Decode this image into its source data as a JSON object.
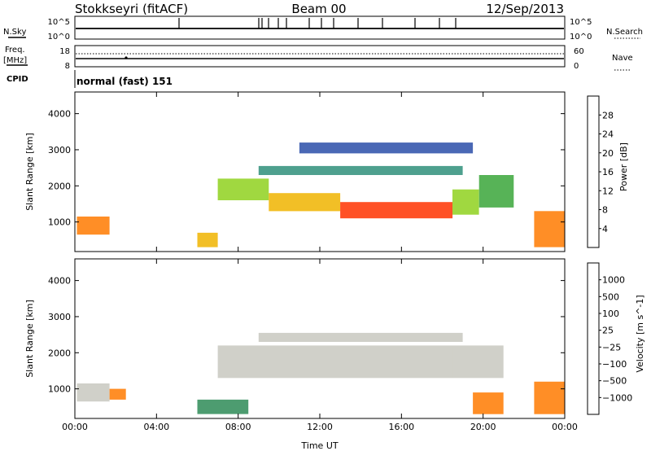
{
  "header": {
    "station": "Stokkseyri (fitACF)",
    "beam": "Beam 00",
    "date": "12/Sep/2013"
  },
  "summary": {
    "left_labels": {
      "nsky": "N.Sky",
      "freq": "Freq.",
      "freq_unit": "[MHz]",
      "cpid": "CPID"
    },
    "right_labels": {
      "nsearch": "N.Search",
      "nave": "Nave"
    },
    "noise_ticks_left": [
      "10^5",
      "10^0"
    ],
    "noise_ticks_right": [
      "10^5",
      "10^0"
    ],
    "freq_ticks_left": [
      "18",
      "8"
    ],
    "nave_ticks_right": [
      "60",
      "0"
    ],
    "cpid_text": "normal (fast) 151"
  },
  "chart_data": [
    {
      "type": "heatmap",
      "name": "power",
      "ylabel": "Slant Range [km]",
      "ylim": [
        180,
        4600
      ],
      "yticks": [
        "1000",
        "2000",
        "3000",
        "4000"
      ],
      "xlim": [
        0,
        24
      ],
      "xticks": [
        "00:00",
        "04:00",
        "08:00",
        "12:00",
        "16:00",
        "20:00",
        "00:00"
      ],
      "colorbar": {
        "label": "Power [dB]",
        "ticks": [
          "4",
          "8",
          "12",
          "16",
          "20",
          "24",
          "28"
        ],
        "colors": [
          "#1a1aff",
          "#2a4da8",
          "#2f8f7a",
          "#3aa63a",
          "#8fd11e",
          "#f0b400",
          "#ff7a00",
          "#ff3300",
          "#e60000"
        ]
      },
      "echo_regions": [
        {
          "t0": 0.1,
          "t1": 1.7,
          "r0": 650,
          "r1": 1150,
          "level": 24
        },
        {
          "t0": 6.0,
          "t1": 7.0,
          "r0": 300,
          "r1": 700,
          "level": 20
        },
        {
          "t0": 7.0,
          "t1": 9.5,
          "r0": 1600,
          "r1": 2200,
          "level": 14
        },
        {
          "t0": 9.5,
          "t1": 13.0,
          "r0": 1300,
          "r1": 1800,
          "level": 20
        },
        {
          "t0": 13.0,
          "t1": 18.5,
          "r0": 1100,
          "r1": 1550,
          "level": 26
        },
        {
          "t0": 18.5,
          "t1": 19.8,
          "r0": 1200,
          "r1": 1900,
          "level": 16
        },
        {
          "t0": 19.8,
          "t1": 21.5,
          "r0": 1400,
          "r1": 2300,
          "level": 12
        },
        {
          "t0": 9.0,
          "t1": 19.0,
          "r0": 2300,
          "r1": 2550,
          "level": 6
        },
        {
          "t0": 11.0,
          "t1": 19.5,
          "r0": 2900,
          "r1": 3200,
          "level": 5
        },
        {
          "t0": 22.5,
          "t1": 24.0,
          "r0": 300,
          "r1": 1300,
          "level": 22
        }
      ]
    },
    {
      "type": "heatmap",
      "name": "velocity",
      "ylabel": "Slant Range [km]",
      "xlabel": "Time UT",
      "ylim": [
        180,
        4600
      ],
      "yticks": [
        "1000",
        "2000",
        "3000",
        "4000"
      ],
      "xlim": [
        0,
        24
      ],
      "xticks": [
        "00:00",
        "04:00",
        "08:00",
        "12:00",
        "16:00",
        "20:00",
        "00:00"
      ],
      "colorbar": {
        "label": "Velocity [m s^-1]",
        "ticks": [
          "1000",
          "500",
          "100",
          "25",
          "−25",
          "−100",
          "−500",
          "−1000"
        ],
        "colors": [
          "#2040c0",
          "#2f6aa0",
          "#2e8b57",
          "#66cc33",
          "#c8c8c0",
          "#ffa64d",
          "#ff7a00",
          "#ff3300",
          "#e60000"
        ]
      },
      "echo_regions": [
        {
          "t0": 0.1,
          "t1": 1.7,
          "r0": 650,
          "r1": 1150,
          "velocity": 0
        },
        {
          "t0": 1.7,
          "t1": 2.5,
          "r0": 700,
          "r1": 1000,
          "velocity": -300
        },
        {
          "t0": 6.0,
          "t1": 8.5,
          "r0": 300,
          "r1": 700,
          "velocity": 150
        },
        {
          "t0": 7.0,
          "t1": 18.5,
          "r0": 1300,
          "r1": 2200,
          "velocity": 0
        },
        {
          "t0": 18.5,
          "t1": 21.0,
          "r0": 1300,
          "r1": 2200,
          "velocity": 0
        },
        {
          "t0": 9.0,
          "t1": 19.0,
          "r0": 2300,
          "r1": 2550,
          "velocity": 0
        },
        {
          "t0": 19.5,
          "t1": 21.0,
          "r0": 300,
          "r1": 900,
          "velocity": -400
        },
        {
          "t0": 22.5,
          "t1": 24.0,
          "r0": 300,
          "r1": 1200,
          "velocity": -300
        }
      ]
    }
  ]
}
